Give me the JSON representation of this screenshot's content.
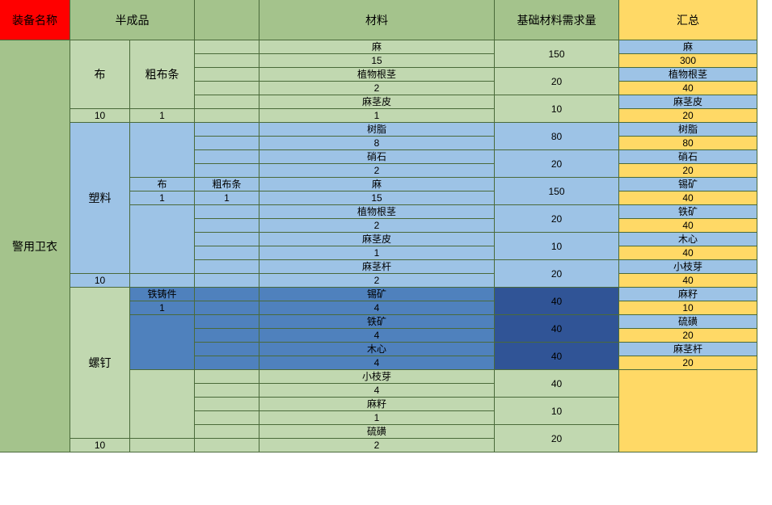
{
  "colors": {
    "red": "#ff0000",
    "green_dark": "#a4c38c",
    "green_light": "#c1d8b0",
    "blue_light": "#9dc3e6",
    "blue_mid": "#4f81bd",
    "blue_dark": "#305496",
    "yellow": "#ffd966",
    "border": "#4a6a3a"
  },
  "headers": {
    "equip_name": "装备名称",
    "semi_product": "半成品",
    "material": "材料",
    "base_demand": "基础材料需求量",
    "summary": "汇总"
  },
  "equip": "警用卫衣",
  "sections": [
    {
      "semi": {
        "name": "布",
        "qty": 10,
        "sub": {
          "name": "粗布条",
          "qty": 1
        }
      },
      "color": "g2",
      "rows": [
        {
          "mat": "麻",
          "qty": 15,
          "demand": 150
        },
        {
          "mat": "植物根茎",
          "qty": 2,
          "demand": 20
        },
        {
          "mat": "麻茎皮",
          "qty": 1,
          "demand": 10
        }
      ]
    },
    {
      "semi": {
        "name": "塑料",
        "qty": 10
      },
      "color": "b1",
      "rows": [
        {
          "mat": "树脂",
          "qty": 8,
          "demand": 80
        },
        {
          "mat": "硝石",
          "qty": 2,
          "demand": 20
        },
        {
          "sub1": "布",
          "sub1_qty": 1,
          "sub2": "粗布条",
          "sub2_qty": 1,
          "mat": "麻",
          "qty": 15,
          "demand": 150
        },
        {
          "mat": "植物根茎",
          "qty": 2,
          "demand": 20
        },
        {
          "mat": "麻茎皮",
          "qty": 1,
          "demand": 10
        },
        {
          "mat": "麻茎杆",
          "qty": 2,
          "demand": 20
        }
      ]
    },
    {
      "semi": {
        "name": "螺钉",
        "qty": 10
      },
      "color": "g2",
      "rows": [
        {
          "sub1": "铁铸件",
          "sub1_qty": 1,
          "mat": "锡矿",
          "qty": 4,
          "demand": 40,
          "style": "b2"
        },
        {
          "mat": "铁矿",
          "qty": 4,
          "demand": 40,
          "style": "b2"
        },
        {
          "mat": "木心",
          "qty": 4,
          "demand": 40,
          "style": "b2"
        },
        {
          "mat": "小枝芽",
          "qty": 4,
          "demand": 40
        },
        {
          "mat": "麻籽",
          "qty": 1,
          "demand": 10
        },
        {
          "mat": "硫磺",
          "qty": 2,
          "demand": 20
        }
      ]
    }
  ],
  "summary": [
    {
      "name": "麻",
      "qty": 300
    },
    {
      "name": "植物根茎",
      "qty": 40
    },
    {
      "name": "麻茎皮",
      "qty": 20
    },
    {
      "name": "树脂",
      "qty": 80
    },
    {
      "name": "硝石",
      "qty": 20
    },
    {
      "name": "锡矿",
      "qty": 40
    },
    {
      "name": "铁矿",
      "qty": 40
    },
    {
      "name": "木心",
      "qty": 40
    },
    {
      "name": "小枝芽",
      "qty": 40
    },
    {
      "name": "麻籽",
      "qty": 10
    },
    {
      "name": "硫磺",
      "qty": 20
    },
    {
      "name": "麻茎杆",
      "qty": 20
    }
  ]
}
